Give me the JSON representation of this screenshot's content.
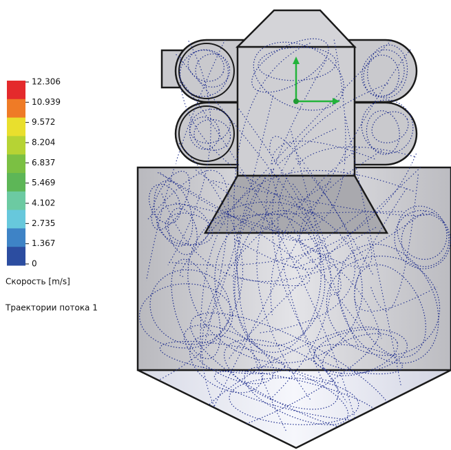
{
  "legend": {
    "ticks": [
      12.306,
      10.939,
      9.572,
      8.204,
      6.837,
      5.469,
      4.102,
      2.735,
      1.367,
      0
    ],
    "colors": [
      "#e42a2c",
      "#ef7b26",
      "#e9df2d",
      "#b6d334",
      "#7bc043",
      "#5db657",
      "#6ccaa2",
      "#67c8dc",
      "#3e83c6",
      "#2c4da0"
    ],
    "quantity": "Скорость [m/s]",
    "caption": "Траектории потока 1"
  }
}
